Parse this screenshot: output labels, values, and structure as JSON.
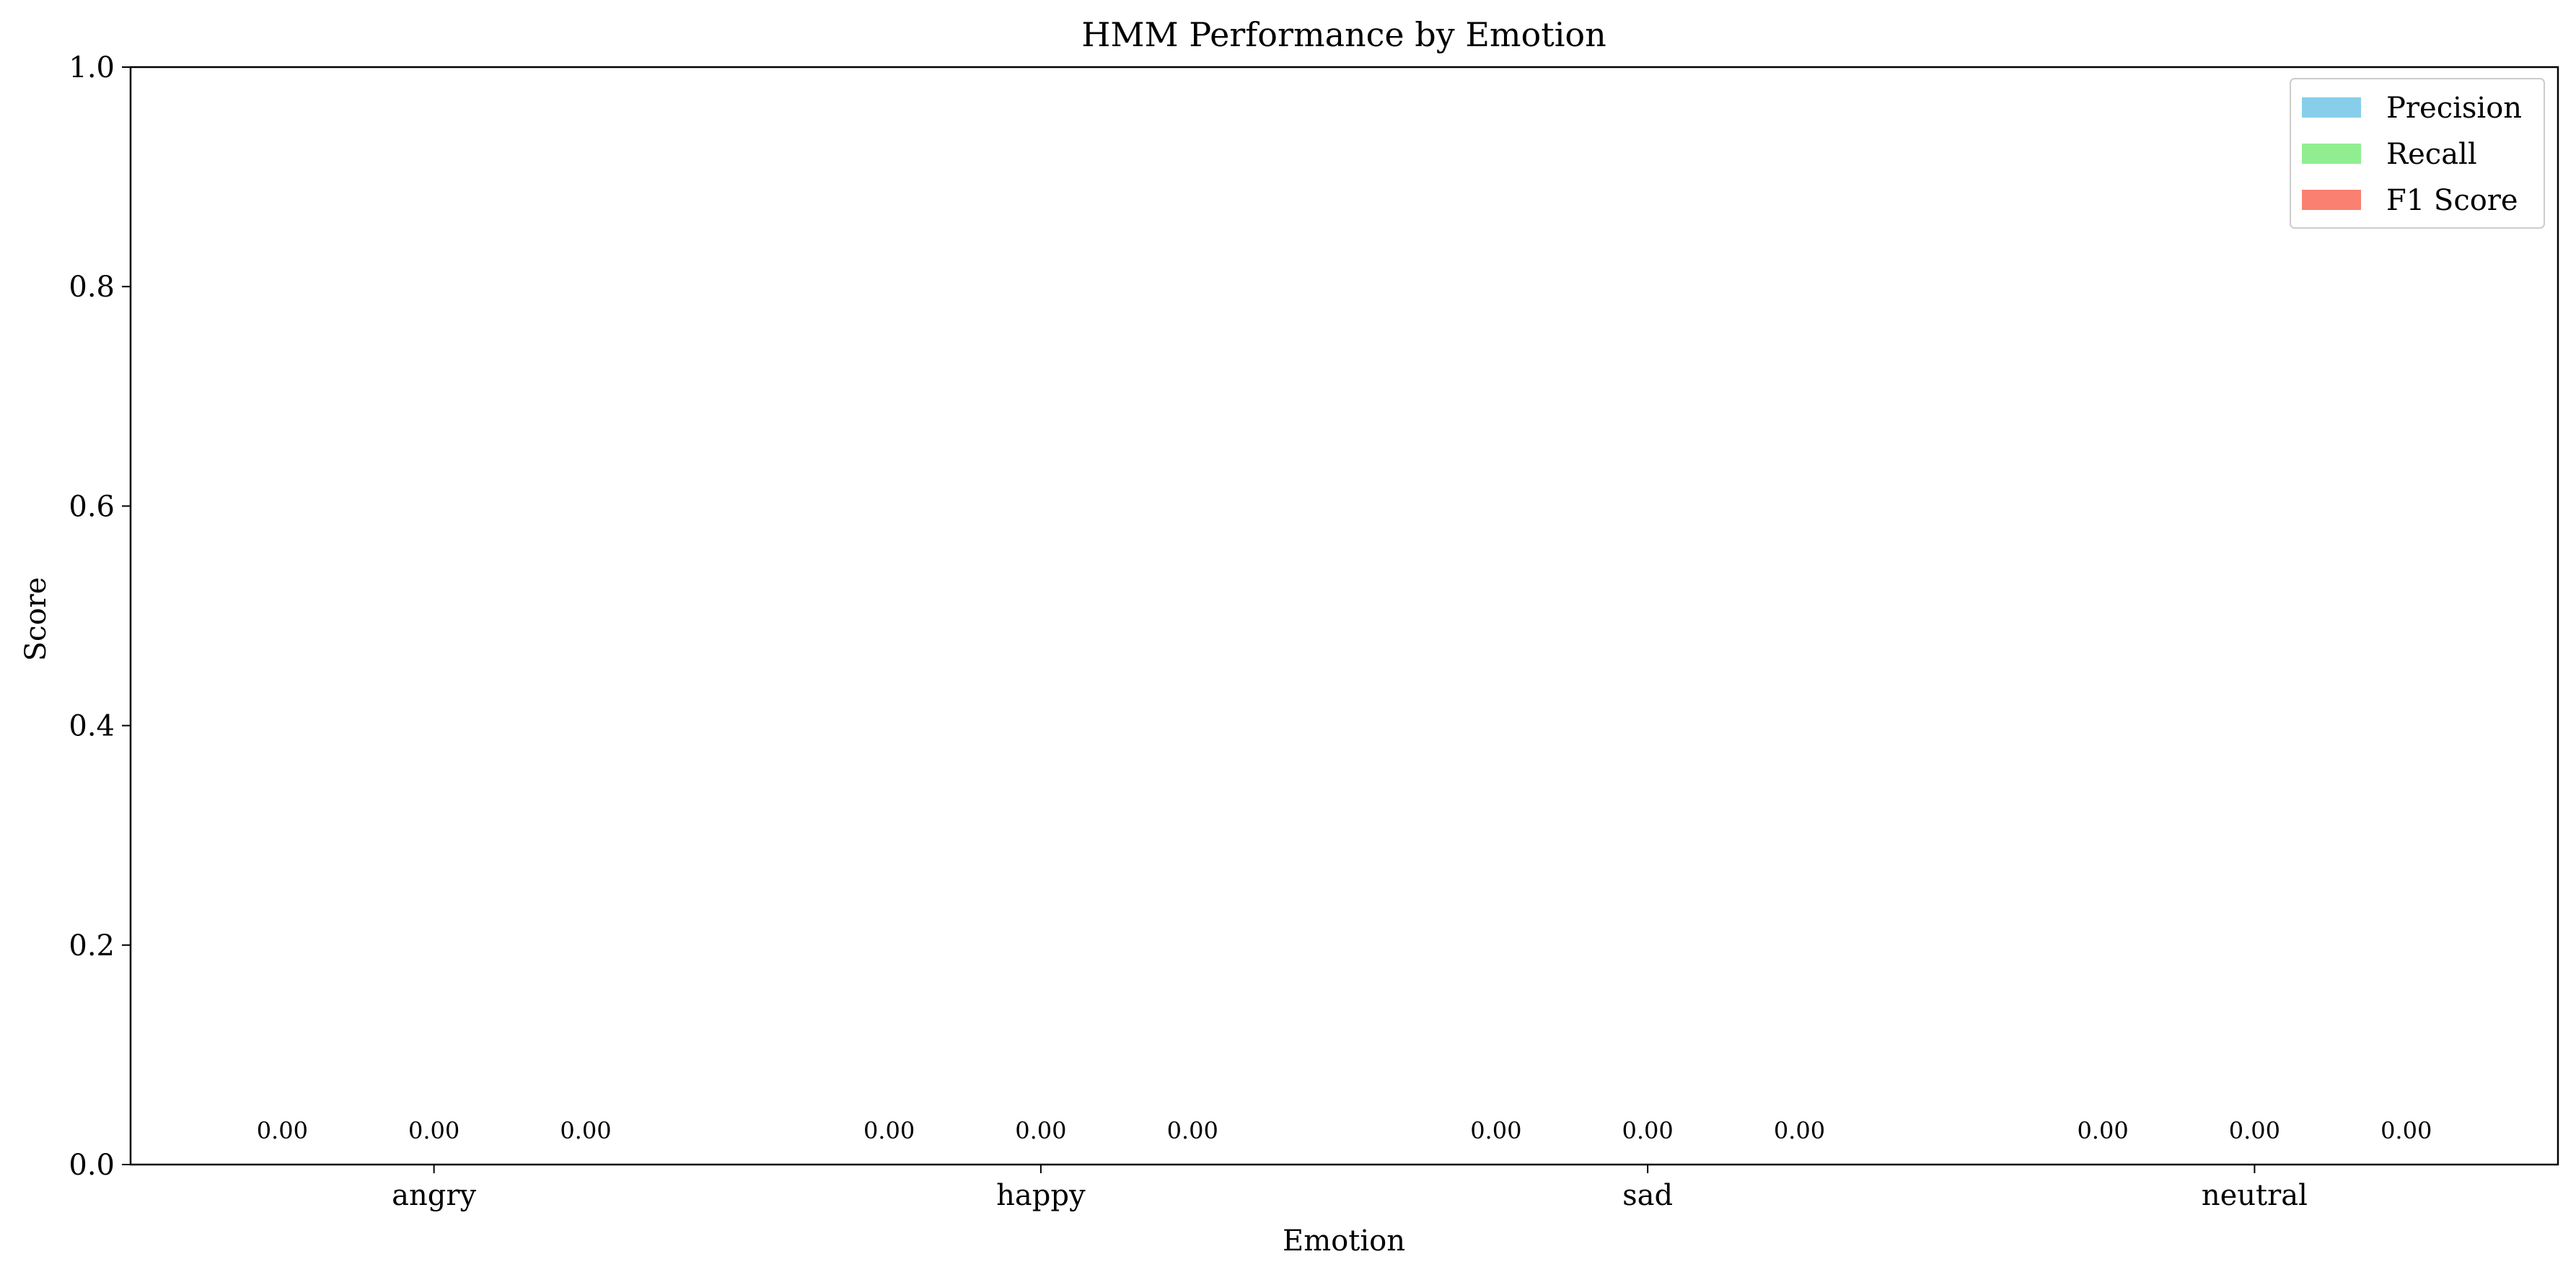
{
  "chart_data": {
    "type": "bar",
    "title": "HMM Performance by Emotion",
    "xlabel": "Emotion",
    "ylabel": "Score",
    "ylim": [
      0,
      1.0
    ],
    "yticks": [
      "0.0",
      "0.2",
      "0.4",
      "0.6",
      "0.8",
      "1.0"
    ],
    "categories": [
      "angry",
      "happy",
      "sad",
      "neutral"
    ],
    "series": [
      {
        "name": "Precision",
        "color": "#87ceeb",
        "values": [
          0.0,
          0.0,
          0.0,
          0.0
        ],
        "labels": [
          "0.00",
          "0.00",
          "0.00",
          "0.00"
        ]
      },
      {
        "name": "Recall",
        "color": "#90ee90",
        "values": [
          0.0,
          0.0,
          0.0,
          0.0
        ],
        "labels": [
          "0.00",
          "0.00",
          "0.00",
          "0.00"
        ]
      },
      {
        "name": "F1 Score",
        "color": "#fa8072",
        "values": [
          0.0,
          0.0,
          0.0,
          0.0
        ],
        "labels": [
          "0.00",
          "0.00",
          "0.00",
          "0.00"
        ]
      }
    ],
    "legend": "top-right",
    "grid": false
  }
}
